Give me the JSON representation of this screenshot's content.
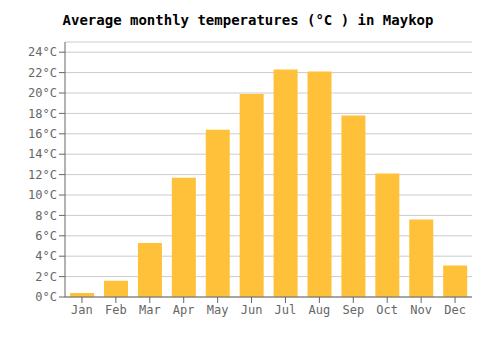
{
  "chart_data": {
    "type": "bar",
    "title": "Average monthly temperatures (°C ) in Maykop",
    "categories": [
      "Jan",
      "Feb",
      "Mar",
      "Apr",
      "May",
      "Jun",
      "Jul",
      "Aug",
      "Sep",
      "Oct",
      "Nov",
      "Dec"
    ],
    "values": [
      0.4,
      1.6,
      5.3,
      11.7,
      16.4,
      19.9,
      22.3,
      22.1,
      17.8,
      12.1,
      7.6,
      3.1
    ],
    "color": "#FFC03A",
    "ylim": [
      0,
      25
    ],
    "yticks": [
      {
        "value": 0,
        "label": "0°C"
      },
      {
        "value": 2,
        "label": "2°C"
      },
      {
        "value": 4,
        "label": "4°C"
      },
      {
        "value": 6,
        "label": "6°C"
      },
      {
        "value": 8,
        "label": "8°C"
      },
      {
        "value": 10,
        "label": "10°C"
      },
      {
        "value": 12,
        "label": "12°C"
      },
      {
        "value": 14,
        "label": "14°C"
      },
      {
        "value": 16,
        "label": "16°C"
      },
      {
        "value": 18,
        "label": "18°C"
      },
      {
        "value": 20,
        "label": "20°C"
      },
      {
        "value": 22,
        "label": "22°C"
      },
      {
        "value": 24,
        "label": "24°C"
      }
    ],
    "grid": true
  }
}
